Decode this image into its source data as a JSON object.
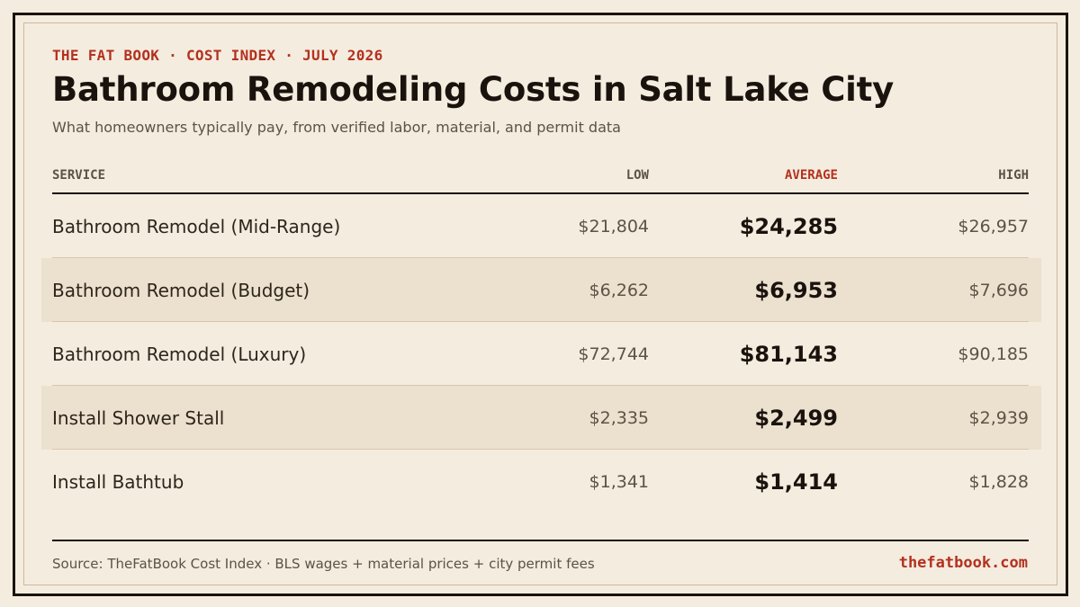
{
  "header": {
    "eyebrow": "THE FAT BOOK · COST INDEX · JULY 2026",
    "title": "Bathroom Remodeling Costs in Salt Lake City",
    "subtitle": "What homeowners typically pay, from verified labor, material, and permit data"
  },
  "table": {
    "columns": {
      "service": "SERVICE",
      "low": "LOW",
      "average": "AVERAGE",
      "high": "HIGH"
    },
    "rows": [
      {
        "service": "Bathroom Remodel (Mid-Range)",
        "low": "$21,804",
        "average": "$24,285",
        "high": "$26,957"
      },
      {
        "service": "Bathroom Remodel (Budget)",
        "low": "$6,262",
        "average": "$6,953",
        "high": "$7,696"
      },
      {
        "service": "Bathroom Remodel (Luxury)",
        "low": "$72,744",
        "average": "$81,143",
        "high": "$90,185"
      },
      {
        "service": "Install Shower Stall",
        "low": "$2,335",
        "average": "$2,499",
        "high": "$2,939"
      },
      {
        "service": "Install Bathtub",
        "low": "$1,341",
        "average": "$1,414",
        "high": "$1,828"
      }
    ]
  },
  "footer": {
    "source": "Source: TheFatBook Cost Index · BLS wages + material prices + city permit fees",
    "site": "thefatbook.com"
  },
  "colors": {
    "background": "#f4ecdf",
    "accent": "#b3311f",
    "ink": "#1a130d",
    "row_shade": "#ece1cf"
  }
}
